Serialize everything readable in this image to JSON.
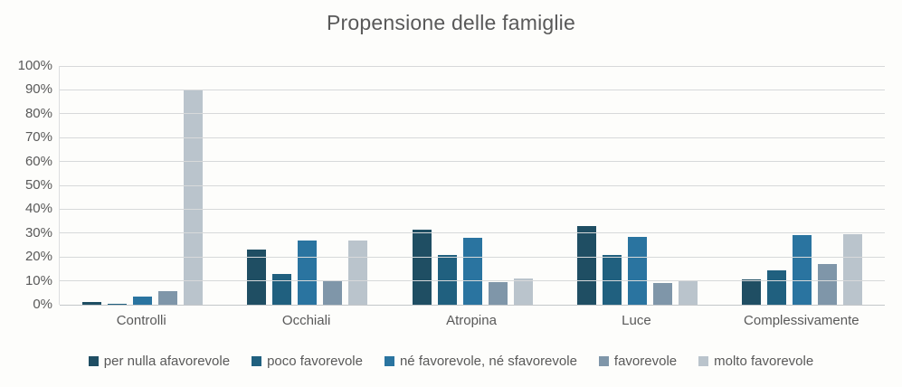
{
  "title": "Propensione delle famiglie",
  "chart_data": {
    "type": "bar",
    "title": "Propensione delle famiglie",
    "categories": [
      "Controlli",
      "Occhiali",
      "Atropina",
      "Luce",
      "Complessivamente"
    ],
    "series": [
      {
        "name": "per nulla afavorevole",
        "color": "#1f4e63",
        "values": [
          1,
          23,
          31.5,
          33,
          10.5
        ]
      },
      {
        "name": "poco favorevole",
        "color": "#20607f",
        "values": [
          0.5,
          13,
          21,
          21,
          14.5
        ]
      },
      {
        "name": "né favorevole, né sfavorevole",
        "color": "#2a74a0",
        "values": [
          3.5,
          27,
          28,
          28.5,
          29
        ]
      },
      {
        "name": "favorevole",
        "color": "#7f96a9",
        "values": [
          5.5,
          10,
          9.5,
          9,
          17
        ]
      },
      {
        "name": "molto favorevole",
        "color": "#bac4cc",
        "values": [
          90,
          27,
          11,
          10,
          29.5
        ]
      }
    ],
    "xlabel": "",
    "ylabel": "",
    "ylim": [
      0,
      100
    ],
    "ytick_step": 10,
    "ytick_labels": [
      "0%",
      "10%",
      "20%",
      "30%",
      "40%",
      "50%",
      "60%",
      "70%",
      "80%",
      "90%",
      "100%"
    ],
    "grid": true,
    "legend_position": "bottom"
  },
  "colors": {
    "text": "#595959",
    "gridline": "#d7d9da",
    "background": "#fdfdfb"
  }
}
